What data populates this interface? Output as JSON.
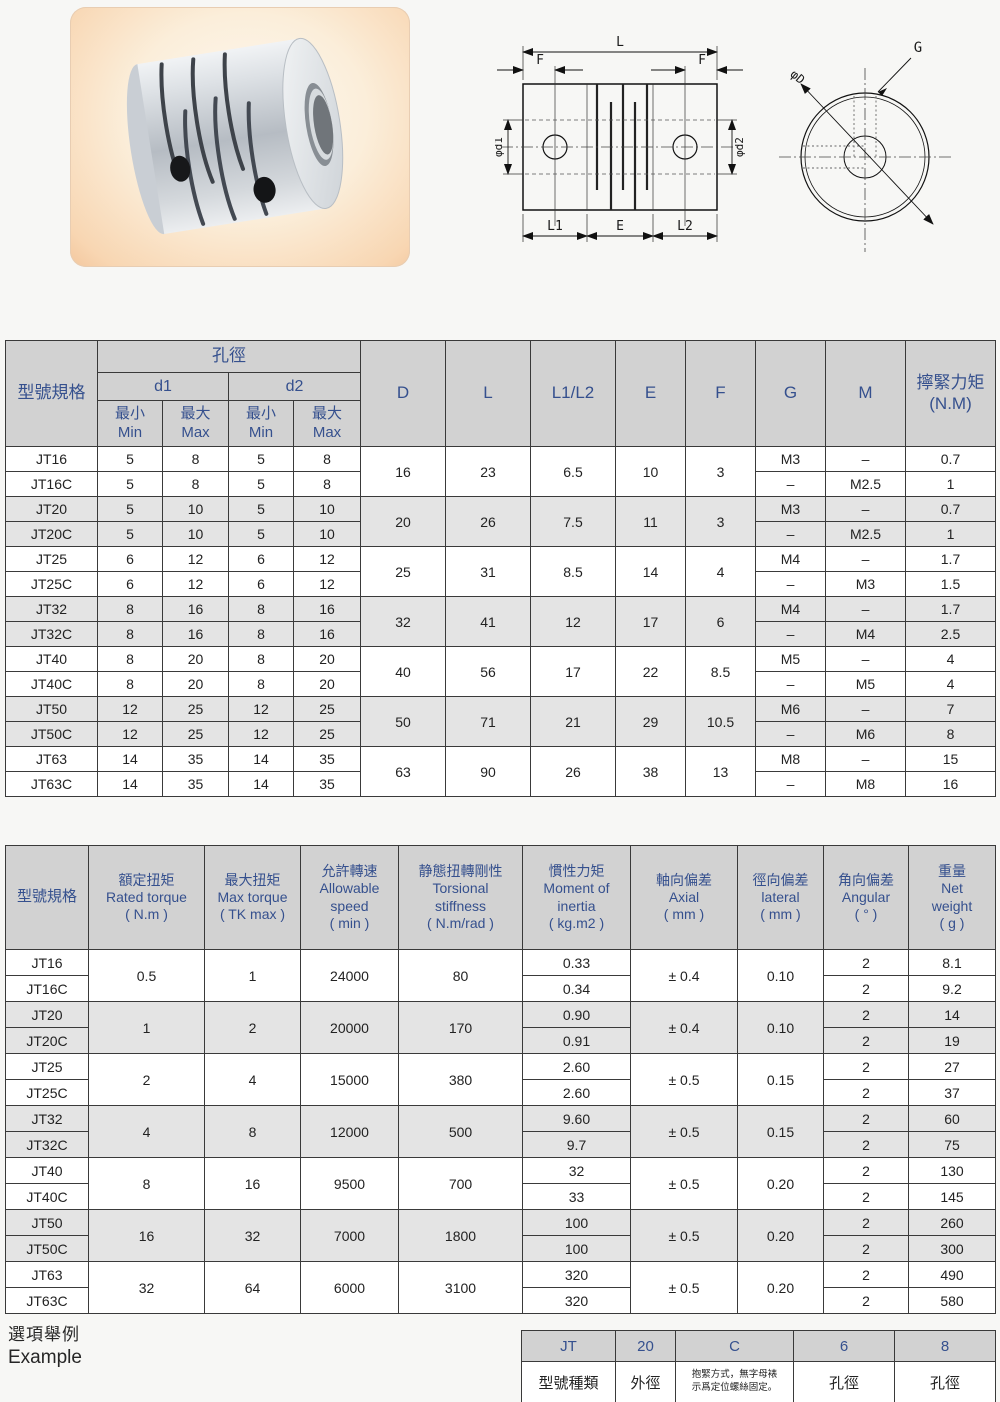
{
  "colors": {
    "header_bg": "#d2d2d2",
    "header_text": "#35508e",
    "row_shade": "#e4e4e4",
    "border": "#3a3a3a"
  },
  "drawing_side": {
    "L": "L",
    "F_left": "F",
    "F_right": "F",
    "d1": "φd1",
    "d2": "φd2",
    "L1": "L1",
    "E": "E",
    "L2": "L2"
  },
  "drawing_front": {
    "G": "G",
    "D": "φD"
  },
  "table1": {
    "header": {
      "model": "型號規格",
      "bore": "孔徑",
      "d1": "d1",
      "d2": "d2",
      "min": "最小\nMin",
      "max": "最大\nMax",
      "D": "D",
      "L": "L",
      "L1L2": "L1/L2",
      "E": "E",
      "F": "F",
      "G": "G",
      "M": "M",
      "torque": "擰緊力矩\n(N.M)"
    },
    "rows": [
      {
        "model": "JT16",
        "d1min": "5",
        "d1max": "8",
        "d2min": "5",
        "d2max": "8",
        "G": "M3",
        "M": "–",
        "torque": "0.7"
      },
      {
        "model": "JT16C",
        "d1min": "5",
        "d1max": "8",
        "d2min": "5",
        "d2max": "8",
        "G": "–",
        "M": "M2.5",
        "torque": "1"
      },
      {
        "model": "JT20",
        "d1min": "5",
        "d1max": "10",
        "d2min": "5",
        "d2max": "10",
        "G": "M3",
        "M": "–",
        "torque": "0.7"
      },
      {
        "model": "JT20C",
        "d1min": "5",
        "d1max": "10",
        "d2min": "5",
        "d2max": "10",
        "G": "–",
        "M": "M2.5",
        "torque": "1"
      },
      {
        "model": "JT25",
        "d1min": "6",
        "d1max": "12",
        "d2min": "6",
        "d2max": "12",
        "G": "M4",
        "M": "–",
        "torque": "1.7"
      },
      {
        "model": "JT25C",
        "d1min": "6",
        "d1max": "12",
        "d2min": "6",
        "d2max": "12",
        "G": "–",
        "M": "M3",
        "torque": "1.5"
      },
      {
        "model": "JT32",
        "d1min": "8",
        "d1max": "16",
        "d2min": "8",
        "d2max": "16",
        "G": "M4",
        "M": "–",
        "torque": "1.7"
      },
      {
        "model": "JT32C",
        "d1min": "8",
        "d1max": "16",
        "d2min": "8",
        "d2max": "16",
        "G": "–",
        "M": "M4",
        "torque": "2.5"
      },
      {
        "model": "JT40",
        "d1min": "8",
        "d1max": "20",
        "d2min": "8",
        "d2max": "20",
        "G": "M5",
        "M": "–",
        "torque": "4"
      },
      {
        "model": "JT40C",
        "d1min": "8",
        "d1max": "20",
        "d2min": "8",
        "d2max": "20",
        "G": "–",
        "M": "M5",
        "torque": "4"
      },
      {
        "model": "JT50",
        "d1min": "12",
        "d1max": "25",
        "d2min": "12",
        "d2max": "25",
        "G": "M6",
        "M": "–",
        "torque": "7"
      },
      {
        "model": "JT50C",
        "d1min": "12",
        "d1max": "25",
        "d2min": "12",
        "d2max": "25",
        "G": "–",
        "M": "M6",
        "torque": "8"
      },
      {
        "model": "JT63",
        "d1min": "14",
        "d1max": "35",
        "d2min": "14",
        "d2max": "35",
        "G": "M8",
        "M": "–",
        "torque": "15"
      },
      {
        "model": "JT63C",
        "d1min": "14",
        "d1max": "35",
        "d2min": "14",
        "d2max": "35",
        "G": "–",
        "M": "M8",
        "torque": "16"
      }
    ],
    "groups": [
      {
        "D": "16",
        "L": "23",
        "L1L2": "6.5",
        "E": "10",
        "F": "3"
      },
      {
        "D": "20",
        "L": "26",
        "L1L2": "7.5",
        "E": "11",
        "F": "3"
      },
      {
        "D": "25",
        "L": "31",
        "L1L2": "8.5",
        "E": "14",
        "F": "4"
      },
      {
        "D": "32",
        "L": "41",
        "L1L2": "12",
        "E": "17",
        "F": "6"
      },
      {
        "D": "40",
        "L": "56",
        "L1L2": "17",
        "E": "22",
        "F": "8.5"
      },
      {
        "D": "50",
        "L": "71",
        "L1L2": "21",
        "E": "29",
        "F": "10.5"
      },
      {
        "D": "63",
        "L": "90",
        "L1L2": "26",
        "E": "38",
        "F": "13"
      }
    ]
  },
  "table2": {
    "header": {
      "model": "型號規格",
      "rated": "額定扭矩\nRated torque\n( N.m )",
      "max": "最大扭矩\nMax torque\n( TK max )",
      "speed": "允許轉速\nAllowable\nspeed\n( min )",
      "stiffness": "静態扭轉剛性\nTorsional\nstiffness\n( N.m/rad )",
      "inertia": "慣性力矩\nMoment of\ninertia\n( kg.m2 )",
      "axial": "軸向偏差\nAxial\n( mm )",
      "lateral": "徑向偏差\nlateral\n( mm )",
      "angular": "角向偏差\nAngular\n( °   )",
      "weight": "重量\nNet\nweight\n( g )"
    },
    "rows": [
      {
        "model": "JT16",
        "inertia": "0.33",
        "angular": "2",
        "weight": "8.1"
      },
      {
        "model": "JT16C",
        "inertia": "0.34",
        "angular": "2",
        "weight": "9.2"
      },
      {
        "model": "JT20",
        "inertia": "0.90",
        "angular": "2",
        "weight": "14"
      },
      {
        "model": "JT20C",
        "inertia": "0.91",
        "angular": "2",
        "weight": "19"
      },
      {
        "model": "JT25",
        "inertia": "2.60",
        "angular": "2",
        "weight": "27"
      },
      {
        "model": "JT25C",
        "inertia": "2.60",
        "angular": "2",
        "weight": "37"
      },
      {
        "model": "JT32",
        "inertia": "9.60",
        "angular": "2",
        "weight": "60"
      },
      {
        "model": "JT32C",
        "inertia": "9.7",
        "angular": "2",
        "weight": "75"
      },
      {
        "model": "JT40",
        "inertia": "32",
        "angular": "2",
        "weight": "130"
      },
      {
        "model": "JT40C",
        "inertia": "33",
        "angular": "2",
        "weight": "145"
      },
      {
        "model": "JT50",
        "inertia": "100",
        "angular": "2",
        "weight": "260"
      },
      {
        "model": "JT50C",
        "inertia": "100",
        "angular": "2",
        "weight": "300"
      },
      {
        "model": "JT63",
        "inertia": "320",
        "angular": "2",
        "weight": "490"
      },
      {
        "model": "JT63C",
        "inertia": "320",
        "angular": "2",
        "weight": "580"
      }
    ],
    "groups": [
      {
        "rated": "0.5",
        "max": "1",
        "speed": "24000",
        "stiffness": "80",
        "axial": "± 0.4",
        "lateral": "0.10"
      },
      {
        "rated": "1",
        "max": "2",
        "speed": "20000",
        "stiffness": "170",
        "axial": "± 0.4",
        "lateral": "0.10"
      },
      {
        "rated": "2",
        "max": "4",
        "speed": "15000",
        "stiffness": "380",
        "axial": "± 0.5",
        "lateral": "0.15"
      },
      {
        "rated": "4",
        "max": "8",
        "speed": "12000",
        "stiffness": "500",
        "axial": "± 0.5",
        "lateral": "0.15"
      },
      {
        "rated": "8",
        "max": "16",
        "speed": "9500",
        "stiffness": "700",
        "axial": "± 0.5",
        "lateral": "0.20"
      },
      {
        "rated": "16",
        "max": "32",
        "speed": "7000",
        "stiffness": "1800",
        "axial": "± 0.5",
        "lateral": "0.20"
      },
      {
        "rated": "32",
        "max": "64",
        "speed": "6000",
        "stiffness": "3100",
        "axial": "± 0.5",
        "lateral": "0.20"
      }
    ]
  },
  "example": {
    "title_zh": "選項舉例",
    "title_en": "Example",
    "codes": [
      "JT",
      "20",
      "C",
      "6",
      "8"
    ],
    "labels": [
      "型號種類",
      "外徑",
      "抱緊方式，無字母裱\n示爲定位螺絲固定。",
      "孔徑",
      "孔徑"
    ]
  }
}
